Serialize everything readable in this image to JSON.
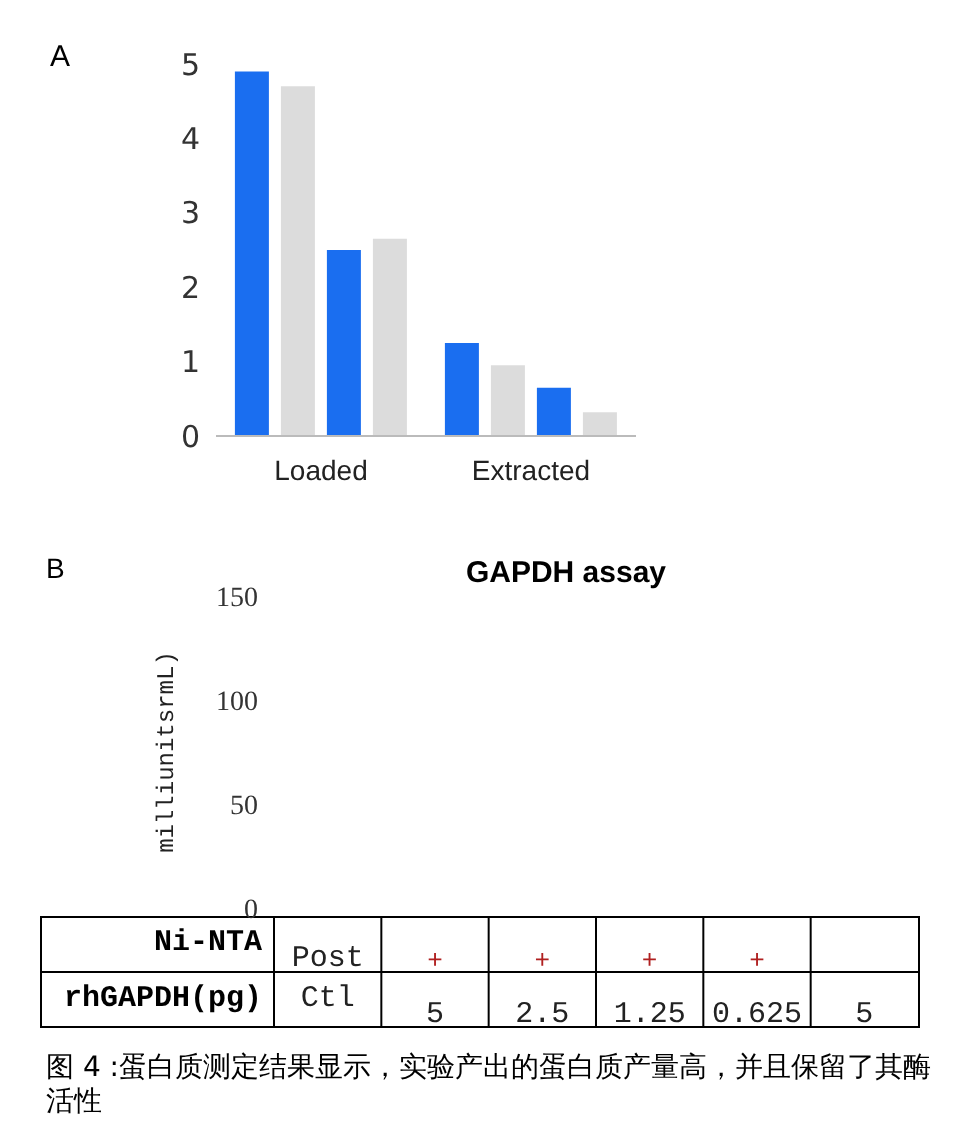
{
  "chart_data": [
    {
      "type": "bar",
      "categories": [
        "Loaded",
        "Extracted"
      ],
      "series": [
        {
          "color": "#1a6ef0",
          "values": [
            4.9,
            1.25
          ]
        },
        {
          "color": "#dcdcdc",
          "values": [
            4.7,
            0.95
          ]
        },
        {
          "color": "#1a6ef0",
          "values": [
            2.5,
            0.65
          ]
        },
        {
          "color": "#dcdcdc",
          "values": [
            2.65,
            0.32
          ]
        }
      ],
      "ylim": [
        0,
        5
      ],
      "yticks": [
        0,
        1,
        2,
        3,
        4,
        5
      ],
      "legend": false,
      "annotations": [
        "A"
      ]
    },
    {
      "type": "bar",
      "title": "GAPDH assay",
      "ylabel": "milliunitsrmL)",
      "categories": [
        "Post Ctl",
        "+\n5",
        "+\n2.5",
        "+\n1.25",
        "+\n0.625",
        "\n5"
      ],
      "series": [
        {
          "color": "#1a6ef0",
          "values": [
            null,
            null,
            null,
            null,
            null,
            null
          ]
        }
      ],
      "ylim": [
        0,
        150
      ],
      "yticks": [
        0,
        50,
        100,
        150
      ],
      "legend": false,
      "annotations": [
        "B",
        "Ni-NTA",
        "rhGAPDH(pg)",
        "图 4 :蛋白质测定结果显示，实验产出的蛋白质产量高，并且保留了其酶活性"
      ]
    }
  ]
}
